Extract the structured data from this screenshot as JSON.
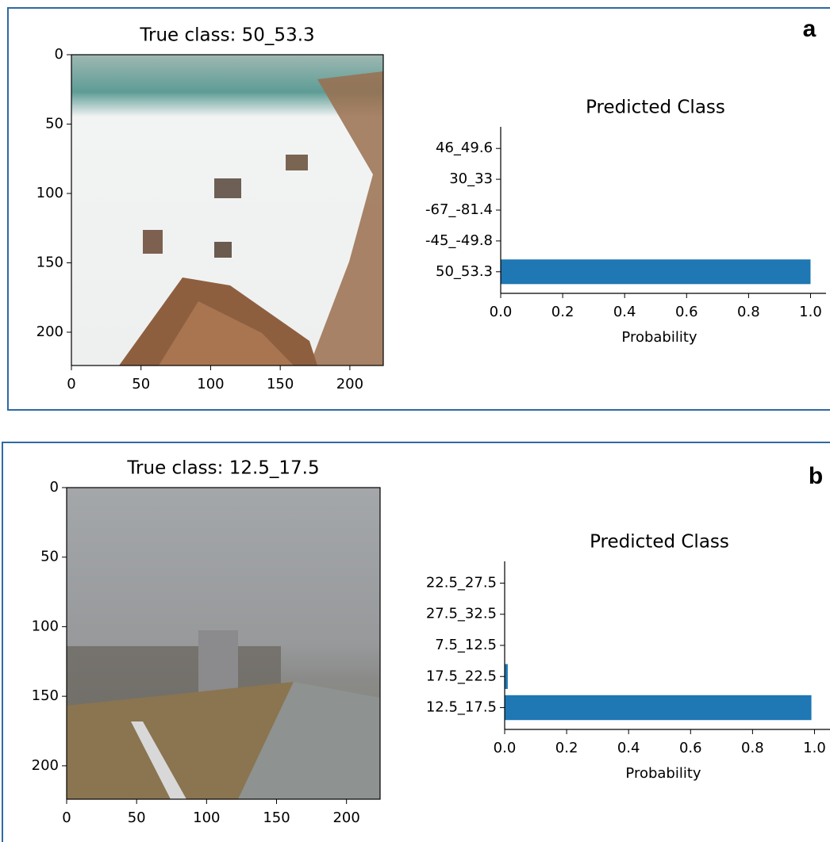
{
  "panel_labels": [
    "a",
    "b"
  ],
  "chart_data": [
    {
      "type": "image",
      "title": "True class: 50_53.3",
      "xlim": [
        0,
        224
      ],
      "ylim": [
        0,
        224
      ],
      "xticks": [
        0,
        50,
        100,
        150,
        200
      ],
      "yticks": [
        0,
        50,
        100,
        150,
        200
      ]
    },
    {
      "type": "barh",
      "title": "Predicted Class",
      "xlabel": "Probability",
      "color": "#1f77b4",
      "categories": [
        "46_49.6",
        "30_33",
        "-67_-81.4",
        "-45_-49.8",
        "50_53.3"
      ],
      "values": [
        0,
        0,
        0,
        0,
        1.0
      ],
      "xlim": [
        0,
        1.05
      ],
      "xticks": [
        {
          "value": 0,
          "label": "0.0"
        },
        0.2,
        0.4,
        0.6,
        0.8,
        {
          "value": 1,
          "label": "1.0"
        }
      ]
    },
    {
      "type": "image",
      "title": "True class: 12.5_17.5",
      "xlim": [
        0,
        224
      ],
      "ylim": [
        0,
        224
      ],
      "xticks": [
        0,
        50,
        100,
        150,
        200
      ],
      "yticks": [
        0,
        50,
        100,
        150,
        200
      ]
    },
    {
      "type": "barh",
      "title": "Predicted Class",
      "xlabel": "Probability",
      "color": "#1f77b4",
      "categories": [
        "22.5_27.5",
        "27.5_32.5",
        "7.5_12.5",
        "17.5_22.5",
        "12.5_17.5"
      ],
      "values": [
        0,
        0,
        0,
        0.01,
        0.99
      ],
      "xlim": [
        0,
        1.05
      ],
      "xticks": [
        {
          "value": 0,
          "label": "0.0"
        },
        0.2,
        0.4,
        0.6,
        0.8,
        {
          "value": 1,
          "label": "1.0"
        }
      ]
    }
  ]
}
